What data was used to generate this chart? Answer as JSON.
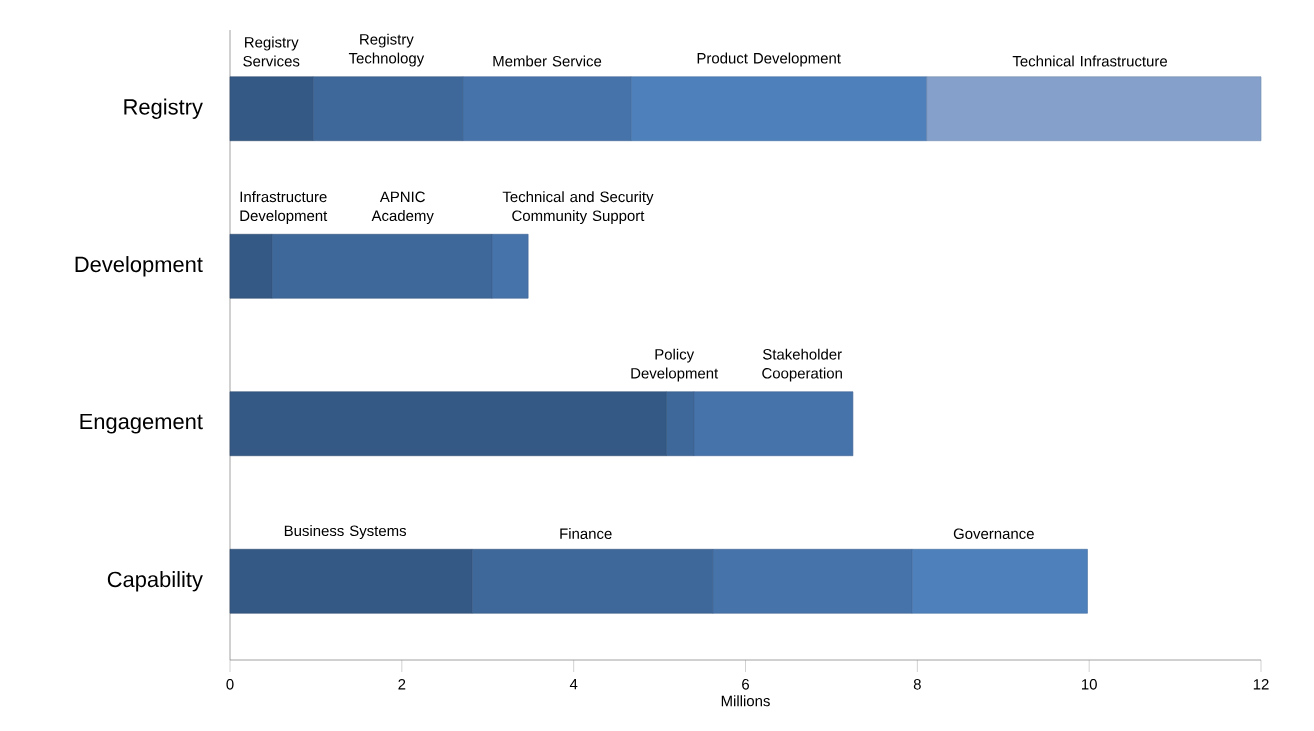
{
  "chart_data": {
    "type": "bar",
    "orientation": "horizontal",
    "stacked": true,
    "categories": [
      "Registry",
      "Development",
      "Engagement",
      "Capability"
    ],
    "series": [
      {
        "color": "#355985",
        "values": [
          0.97,
          0.49,
          5.08,
          2.82
        ]
      },
      {
        "color": "#3e6899",
        "values": [
          1.74,
          2.56,
          0.32,
          2.8
        ]
      },
      {
        "color": "#4773ab",
        "values": [
          1.96,
          0.42,
          1.85,
          2.32
        ]
      },
      {
        "color": "#4e80bc",
        "values": [
          3.44,
          null,
          null,
          2.04
        ]
      },
      {
        "color": "#85a1cb",
        "values": [
          3.89,
          null,
          null,
          null
        ]
      }
    ],
    "xlim": [
      0,
      12
    ],
    "xticks": [
      0,
      2,
      4,
      6,
      8,
      10,
      12
    ],
    "xlabel": "Millions",
    "grid": false,
    "annotations": [
      "Registry Services",
      "Registry Technology",
      "Member Service",
      "Product Development",
      "Technical Infrastructure",
      "Infrastructure Development",
      "APNIC Academy",
      "Technical and Security Community Support",
      "Policy Development",
      "Stakeholder Cooperation",
      "Business Systems",
      "Finance",
      "Governance"
    ]
  }
}
